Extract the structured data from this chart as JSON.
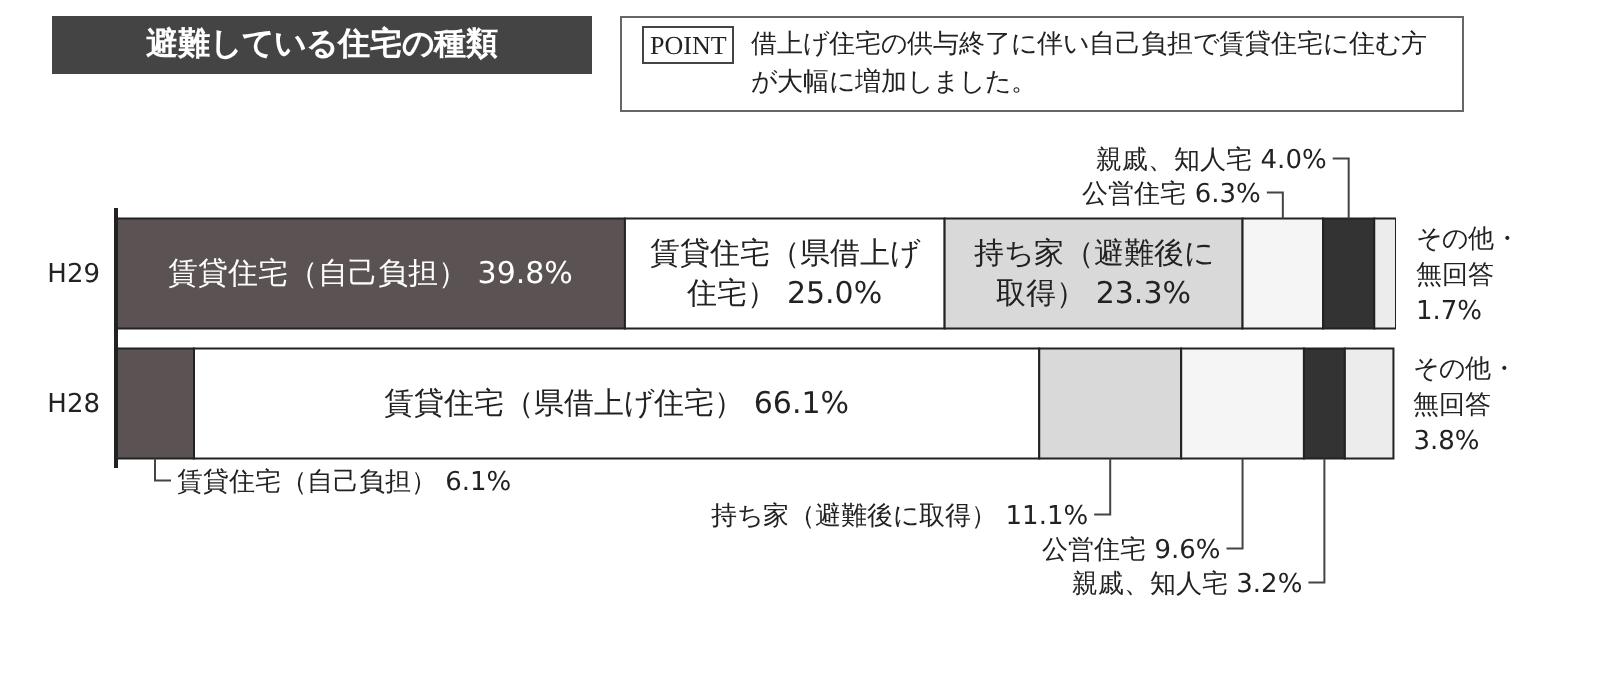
{
  "chart_data": {
    "type": "bar",
    "orientation": "horizontal",
    "stacked": true,
    "title": "避難している住宅の種類",
    "subtitle": "借上げ住宅の供与終了に伴い自己負担で賃貸住宅に住む方が大幅に増加しました。",
    "annotations": [
      "POINT"
    ],
    "categories": [
      "H29",
      "H28"
    ],
    "xlim": [
      0,
      100.1
    ],
    "tick_labels": "y",
    "series": [
      {
        "name": "賃貸住宅（自己負担）",
        "color": "#5b5353",
        "values": [
          39.8,
          6.1
        ],
        "value_labels": [
          "39.8%",
          "6.1%"
        ]
      },
      {
        "name": "賃貸住宅（県借上げ住宅）",
        "color": "#ffffff",
        "values": [
          25.0,
          66.1
        ],
        "value_labels": [
          "25.0%",
          "66.1%"
        ]
      },
      {
        "name": "持ち家（避難後に取得）",
        "color": "#d9d9d9",
        "values": [
          23.3,
          11.1
        ],
        "value_labels": [
          "23.3%",
          "11.1%"
        ]
      },
      {
        "name": "公営住宅",
        "color": "#f5f5f5",
        "values": [
          6.3,
          9.6
        ],
        "value_labels": [
          "6.3%",
          "9.6%"
        ]
      },
      {
        "name": "親戚、知人宅",
        "color": "#333333",
        "values": [
          4.0,
          3.2
        ],
        "value_labels": [
          "4.0%",
          "3.2%"
        ]
      },
      {
        "name": "その他・無回答",
        "color": "#ececec",
        "values": [
          1.7,
          3.8
        ],
        "value_labels": [
          "1.7%",
          "3.8%"
        ]
      }
    ]
  }
}
